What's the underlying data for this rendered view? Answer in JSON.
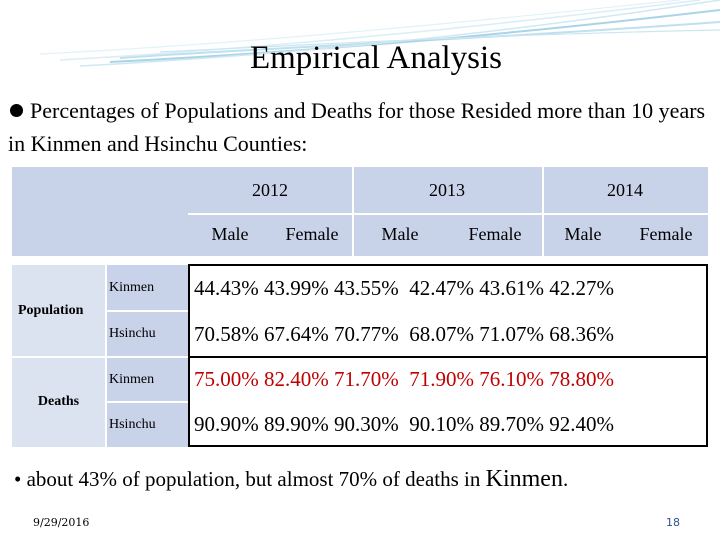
{
  "slide": {
    "title": "Empirical Analysis",
    "intro": "Percentages of Populations and Deaths for those Resided more than 10 years in Kinmen and Hsinchu Counties:",
    "note": {
      "bullet": "•",
      "text_before": "about 43% of population, but almost 70% of deaths in ",
      "place": "Kinmen",
      "text_after": "."
    },
    "footer": {
      "date": "9/29/2016",
      "page": "18"
    }
  },
  "table": {
    "years": [
      "2012",
      "2013",
      "2014"
    ],
    "genders": [
      "Male",
      "Female",
      "Male",
      "Female",
      "Male",
      "Female"
    ],
    "groups": [
      {
        "label": "Population",
        "rows": [
          {
            "county": "Kinmen",
            "values": [
              "44.43%",
              "43.99%",
              "43.55%",
              "42.47%",
              "43.61%",
              "42.27%"
            ]
          },
          {
            "county": "Hsinchu",
            "values": [
              "70.58%",
              "67.64%",
              "70.77%",
              "68.07%",
              "71.07%",
              "68.36%"
            ]
          }
        ]
      },
      {
        "label": "Deaths",
        "rows": [
          {
            "county": "Kinmen",
            "values": [
              "75.00%",
              "82.40%",
              "71.70%",
              "71.90%",
              "76.10%",
              "78.80%"
            ]
          },
          {
            "county": "Hsinchu",
            "values": [
              "90.90%",
              "89.90%",
              "90.30%",
              "90.10%",
              "89.70%",
              "92.40%"
            ]
          }
        ]
      }
    ],
    "colors": {
      "header": "#c8d2e8",
      "side": "#dbe3f1",
      "value_red": "#c00000"
    }
  }
}
